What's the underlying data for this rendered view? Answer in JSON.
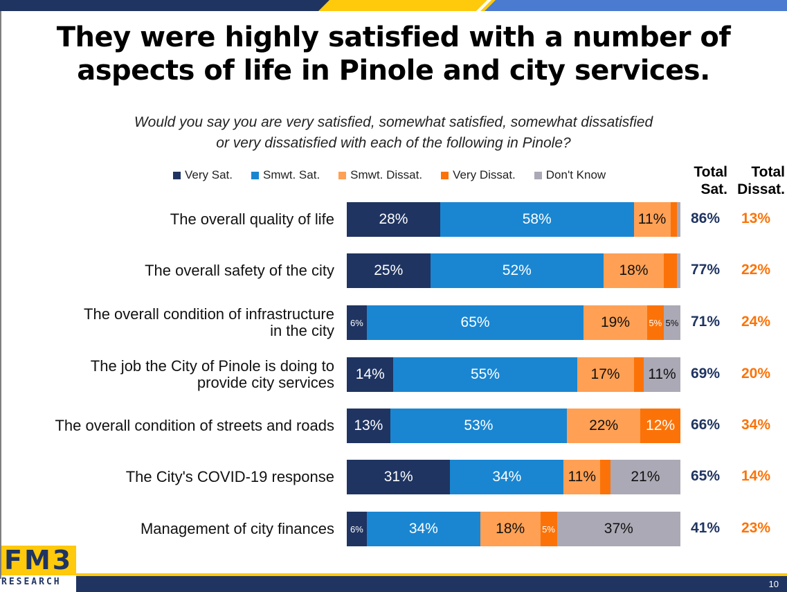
{
  "slide": {
    "title_line1": "They were highly satisfied with a number of",
    "title_line2": "aspects of life in Pinole and city services.",
    "question_line1": "Would you say you are very satisfied, somewhat satisfied, somewhat dissatisfied",
    "question_line2": "or very dissatisfied with each of the following in Pinole?",
    "page_number": "10",
    "logo_main": "FM3",
    "logo_sub": "RESEARCH"
  },
  "colors": {
    "very_sat": "#1f3461",
    "smwt_sat": "#1a86d1",
    "smwt_dissat": "#ffa054",
    "very_dissat": "#fb7308",
    "dont_know": "#aaa9b5",
    "total_sat": "#1f3461",
    "total_dissat": "#fb7308",
    "accent_yellow": "#ffc90c",
    "accent_blue": "#4a7bd0"
  },
  "chart_data": {
    "type": "bar",
    "orientation": "horizontal-stacked-100",
    "title": "They were highly satisfied with a number of aspects of life in Pinole and city services.",
    "subtitle": "Would you say you are very satisfied, somewhat satisfied, somewhat dissatisfied or very dissatisfied with each of the following in Pinole?",
    "xlim": [
      0,
      100
    ],
    "legend_position": "top",
    "categories": [
      [
        "The overall quality of life"
      ],
      [
        "The overall safety of the city"
      ],
      [
        "The overall condition of infrastructure",
        "in the city"
      ],
      [
        "The job the City of Pinole is doing to",
        "provide city services"
      ],
      [
        "The overall condition of streets and roads"
      ],
      [
        "The City's COVID-19 response"
      ],
      [
        "Management of city finances"
      ]
    ],
    "series": [
      {
        "name": "Very Sat.",
        "key": "very_sat",
        "values": [
          28,
          25,
          6,
          14,
          13,
          31,
          6
        ],
        "labels": [
          "28%",
          "25%",
          "6%",
          "14%",
          "13%",
          "31%",
          "6%"
        ]
      },
      {
        "name": "Smwt. Sat.",
        "key": "smwt_sat",
        "values": [
          58,
          52,
          65,
          55,
          53,
          34,
          34
        ],
        "labels": [
          "58%",
          "52%",
          "65%",
          "55%",
          "53%",
          "34%",
          "34%"
        ]
      },
      {
        "name": "Smwt. Dissat.",
        "key": "smwt_dissat",
        "values": [
          11,
          18,
          19,
          17,
          22,
          11,
          18
        ],
        "labels": [
          "11%",
          "18%",
          "19%",
          "17%",
          "22%",
          "11%",
          "18%"
        ]
      },
      {
        "name": "Very Dissat.",
        "key": "very_dissat",
        "values": [
          2,
          4,
          5,
          3,
          12,
          3,
          5
        ],
        "labels": [
          "",
          "",
          "5%",
          "",
          "12%",
          "",
          "5%"
        ]
      },
      {
        "name": "Don't Know",
        "key": "dont_know",
        "values": [
          1,
          1,
          5,
          11,
          0,
          21,
          37
        ],
        "labels": [
          "",
          "",
          "5%",
          "11%",
          "",
          "21%",
          "37%"
        ]
      }
    ],
    "totals": {
      "sat_header": [
        "Total",
        "Sat."
      ],
      "dissat_header": [
        "Total",
        "Dissat."
      ],
      "total_sat": [
        "86%",
        "77%",
        "71%",
        "69%",
        "66%",
        "65%",
        "41%"
      ],
      "total_dissat": [
        "13%",
        "22%",
        "24%",
        "20%",
        "34%",
        "14%",
        "23%"
      ]
    }
  }
}
